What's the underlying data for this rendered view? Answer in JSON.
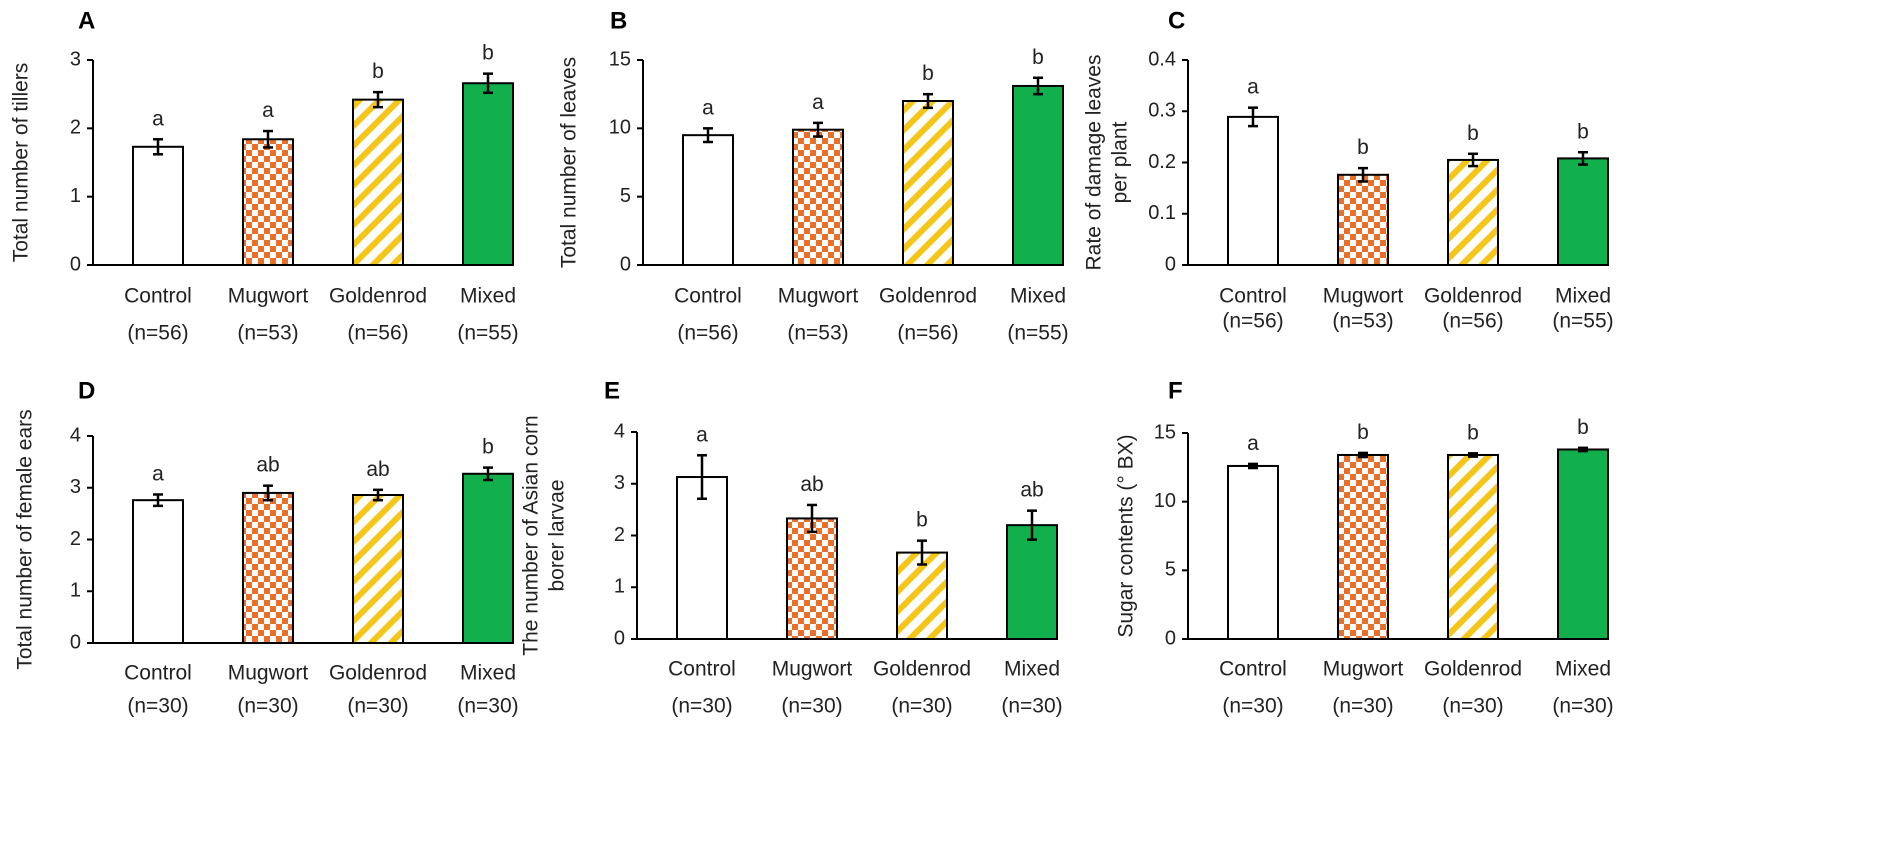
{
  "colors": {
    "Control": "#ffffff",
    "Mugwort": "#e8702a",
    "Goldenrod": "#f5c518",
    "Mixed": "#12b04c",
    "axis": "#000000"
  },
  "patterns": {
    "Control": "solid",
    "Mugwort": "checker",
    "Goldenrod": "diagonal-stripes",
    "Mixed": "solid"
  },
  "chart_data": [
    {
      "panel": "A",
      "type": "bar",
      "ylabel_lines": [
        "Total number of tillers"
      ],
      "ylim": [
        0,
        3
      ],
      "yticks": [
        "0",
        "1",
        "2",
        "3"
      ],
      "categories": [
        "Control",
        "Mugwort",
        "Goldenrod",
        "Mixed"
      ],
      "n_labels": [
        "(n=56)",
        "(n=53)",
        "(n=56)",
        "(n=55)"
      ],
      "values": [
        1.73,
        1.84,
        2.42,
        2.66
      ],
      "errors": [
        0.11,
        0.12,
        0.11,
        0.14
      ],
      "significance": [
        "a",
        "a",
        "b",
        "b"
      ]
    },
    {
      "panel": "B",
      "type": "bar",
      "ylabel_lines": [
        "Total number of leaves"
      ],
      "ylim": [
        0,
        15
      ],
      "yticks": [
        "0",
        "5",
        "10",
        "15"
      ],
      "categories": [
        "Control",
        "Mugwort",
        "Goldenrod",
        "Mixed"
      ],
      "n_labels": [
        "(n=56)",
        "(n=53)",
        "(n=56)",
        "(n=55)"
      ],
      "values": [
        9.5,
        9.9,
        12.0,
        13.1
      ],
      "errors": [
        0.5,
        0.5,
        0.5,
        0.6
      ],
      "significance": [
        "a",
        "a",
        "b",
        "b"
      ]
    },
    {
      "panel": "C",
      "type": "bar",
      "ylabel_lines": [
        "Rate of damage leaves",
        "per plant"
      ],
      "ylim": [
        0,
        0.4
      ],
      "yticks": [
        "0",
        "0.1",
        "0.2",
        "0.3",
        "0.4"
      ],
      "categories": [
        "Control",
        "Mugwort",
        "Goldenrod",
        "Mixed"
      ],
      "n_labels": [
        "(n=56)",
        "(n=53)",
        "(n=56)",
        "(n=55)"
      ],
      "values": [
        0.289,
        0.176,
        0.205,
        0.208
      ],
      "errors": [
        0.018,
        0.013,
        0.012,
        0.012
      ],
      "significance": [
        "a",
        "b",
        "b",
        "b"
      ]
    },
    {
      "panel": "D",
      "type": "bar",
      "ylabel_lines": [
        "Total number of female ears"
      ],
      "ylim": [
        0,
        4
      ],
      "yticks": [
        "0",
        "1",
        "2",
        "3",
        "4"
      ],
      "categories": [
        "Control",
        "Mugwort",
        "Goldenrod",
        "Mixed"
      ],
      "n_labels": [
        "(n=30)",
        "(n=30)",
        "(n=30)",
        "(n=30)"
      ],
      "values": [
        2.76,
        2.9,
        2.86,
        3.27
      ],
      "errors": [
        0.11,
        0.14,
        0.1,
        0.12
      ],
      "significance": [
        "a",
        "ab",
        "ab",
        "b"
      ]
    },
    {
      "panel": "E",
      "type": "bar",
      "ylabel_lines": [
        "The number of Asian corn",
        "borer larvae"
      ],
      "ylim": [
        0,
        4
      ],
      "yticks": [
        "0",
        "1",
        "2",
        "3",
        "4"
      ],
      "categories": [
        "Control",
        "Mugwort",
        "Goldenrod",
        "Mixed"
      ],
      "n_labels": [
        "(n=30)",
        "(n=30)",
        "(n=30)",
        "(n=30)"
      ],
      "values": [
        3.13,
        2.33,
        1.67,
        2.2
      ],
      "errors": [
        0.42,
        0.26,
        0.23,
        0.28
      ],
      "significance": [
        "a",
        "ab",
        "b",
        "ab"
      ]
    },
    {
      "panel": "F",
      "type": "bar",
      "ylabel_lines": [
        "Sugar contents (° BX)"
      ],
      "ylim": [
        0,
        15
      ],
      "yticks": [
        "0",
        "5",
        "10",
        "15"
      ],
      "categories": [
        "Control",
        "Mugwort",
        "Goldenrod",
        "Mixed"
      ],
      "n_labels": [
        "(n=30)",
        "(n=30)",
        "(n=30)",
        "(n=30)"
      ],
      "values": [
        12.6,
        13.4,
        13.4,
        13.8
      ],
      "errors": [
        0.15,
        0.15,
        0.12,
        0.12
      ],
      "significance": [
        "a",
        "b",
        "b",
        "b"
      ]
    }
  ]
}
